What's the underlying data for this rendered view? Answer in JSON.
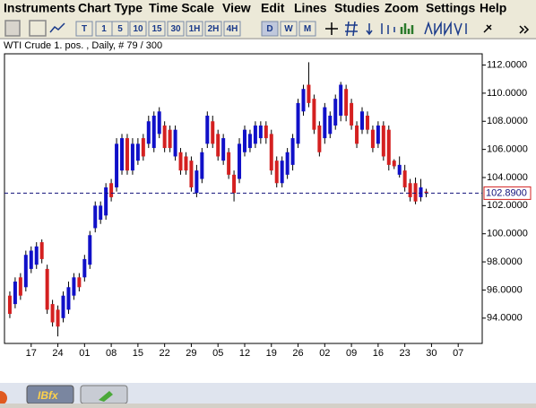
{
  "menu": [
    "Instruments",
    "Chart Type",
    "Time Scale",
    "View",
    "Edit",
    "Lines",
    "Studies",
    "Zoom",
    "Settings",
    "Help"
  ],
  "toolbar": {
    "buttons": [
      "T",
      "1",
      "5",
      "10",
      "15",
      "30",
      "1H",
      "2H",
      "4H",
      "D",
      "W",
      "M"
    ],
    "active": "D"
  },
  "taskbar": {
    "app": "IBfx"
  },
  "chart_data": {
    "type": "candlestick",
    "title": "WTI Crude 1. pos. , Daily, # 79 / 300",
    "open": [
      95.6,
      95.0,
      96.9,
      96.2,
      97.5,
      97.8,
      99.4,
      97.5,
      95.0,
      94.6,
      94.0,
      94.6,
      95.6,
      96.9,
      96.9,
      97.8,
      100.4,
      101.0,
      101.3,
      103.6,
      103.3,
      104.5,
      106.8,
      104.5,
      105.2,
      106.8,
      106.4,
      106.1,
      107.1,
      107.7,
      107.4,
      105.5,
      105.8,
      105.5,
      105.2,
      102.9,
      103.9,
      106.4,
      108.0,
      107.1,
      105.2,
      105.8,
      104.2,
      103.9,
      105.8,
      106.1,
      106.4,
      106.8,
      107.7,
      107.1,
      105.2,
      103.6,
      104.2,
      104.9,
      106.4,
      108.7,
      110.6,
      109.6,
      107.7,
      106.8,
      107.1,
      107.7,
      108.4,
      110.3,
      109.3,
      107.7,
      107.4,
      108.4,
      107.4,
      106.4,
      107.7,
      107.4,
      105.2,
      104.2,
      104.5,
      103.6,
      103.6,
      102.6,
      103.0
    ],
    "high": [
      95.9,
      96.9,
      97.2,
      98.8,
      99.1,
      99.4,
      99.6,
      97.8,
      95.3,
      94.9,
      95.9,
      96.6,
      97.2,
      97.2,
      98.5,
      100.2,
      102.3,
      102.3,
      103.6,
      103.9,
      106.8,
      107.1,
      107.1,
      106.8,
      106.8,
      107.1,
      108.4,
      108.7,
      109.0,
      108.0,
      107.7,
      107.7,
      106.1,
      105.8,
      105.5,
      104.9,
      106.1,
      108.7,
      108.4,
      107.4,
      107.1,
      106.1,
      104.5,
      106.8,
      107.7,
      107.4,
      108.0,
      108.0,
      108.0,
      107.4,
      105.5,
      105.5,
      106.1,
      107.1,
      109.6,
      110.6,
      112.2,
      109.9,
      108.0,
      109.3,
      108.7,
      109.9,
      110.8,
      110.6,
      109.6,
      108.0,
      109.0,
      108.7,
      107.7,
      108.0,
      108.0,
      107.7,
      105.3,
      105.5,
      104.9,
      103.9,
      104.0,
      103.9,
      103.2
    ],
    "low": [
      94.0,
      94.7,
      95.3,
      95.9,
      97.2,
      97.5,
      97.9,
      94.3,
      93.4,
      92.7,
      93.7,
      94.3,
      95.3,
      95.9,
      96.6,
      97.5,
      100.1,
      100.7,
      101.0,
      102.3,
      103.0,
      104.2,
      104.2,
      104.2,
      104.9,
      105.2,
      106.1,
      105.8,
      106.8,
      105.8,
      105.8,
      105.2,
      104.2,
      104.2,
      103.0,
      102.6,
      103.6,
      106.1,
      106.1,
      105.2,
      104.9,
      103.9,
      102.3,
      103.6,
      105.5,
      105.8,
      106.1,
      106.4,
      106.4,
      104.2,
      103.3,
      103.3,
      103.9,
      104.5,
      106.1,
      108.4,
      109.0,
      107.1,
      105.5,
      106.4,
      106.8,
      107.4,
      108.0,
      108.0,
      107.4,
      106.1,
      107.1,
      107.1,
      105.8,
      106.1,
      105.2,
      104.5,
      104.6,
      104.0,
      103.0,
      102.3,
      102.1,
      102.3,
      102.6
    ],
    "close": [
      94.3,
      96.6,
      95.6,
      98.5,
      98.8,
      99.1,
      98.2,
      94.6,
      93.7,
      93.4,
      95.6,
      96.2,
      96.9,
      96.2,
      98.2,
      99.9,
      102.0,
      102.0,
      103.3,
      102.6,
      106.4,
      106.8,
      104.5,
      106.4,
      106.4,
      105.5,
      108.0,
      108.4,
      108.7,
      106.1,
      106.1,
      107.4,
      104.5,
      104.5,
      103.3,
      104.5,
      105.8,
      108.4,
      106.4,
      105.5,
      106.8,
      104.2,
      102.9,
      106.4,
      107.4,
      107.1,
      107.7,
      107.7,
      106.8,
      104.5,
      103.6,
      105.2,
      105.8,
      106.8,
      109.3,
      110.3,
      109.3,
      107.4,
      105.8,
      109.0,
      108.4,
      109.6,
      110.6,
      108.4,
      107.7,
      106.4,
      108.7,
      107.4,
      106.1,
      107.7,
      105.5,
      104.9,
      104.8,
      104.9,
      103.3,
      102.6,
      102.3,
      103.3,
      102.9
    ],
    "up_color": "#1010c8",
    "down_color": "#d42020",
    "xlim": [
      -1,
      88.5
    ],
    "xticks": [
      {
        "value": 4,
        "label": "17"
      },
      {
        "value": 9,
        "label": "24"
      },
      {
        "value": 14,
        "label": "01"
      },
      {
        "value": 19,
        "label": "08"
      },
      {
        "value": 24,
        "label": "15"
      },
      {
        "value": 29,
        "label": "22"
      },
      {
        "value": 34,
        "label": "29"
      },
      {
        "value": 39,
        "label": "05"
      },
      {
        "value": 44,
        "label": "12"
      },
      {
        "value": 49,
        "label": "19"
      },
      {
        "value": 54,
        "label": "26"
      },
      {
        "value": 59,
        "label": "02"
      },
      {
        "value": 64,
        "label": "09"
      },
      {
        "value": 69,
        "label": "16"
      },
      {
        "value": 74,
        "label": "23"
      },
      {
        "value": 79,
        "label": "30"
      },
      {
        "value": 84,
        "label": "07"
      }
    ],
    "ylim": [
      92.2,
      112.8
    ],
    "yticks": [
      {
        "value": 94,
        "label": "94.0000"
      },
      {
        "value": 96,
        "label": "96.0000"
      },
      {
        "value": 98,
        "label": "98.0000"
      },
      {
        "value": 100,
        "label": "100.0000"
      },
      {
        "value": 102,
        "label": "102.0000"
      },
      {
        "value": 104,
        "label": "104.0000"
      },
      {
        "value": 106,
        "label": "106.0000"
      },
      {
        "value": 108,
        "label": "108.0000"
      },
      {
        "value": 110,
        "label": "110.0000"
      },
      {
        "value": 112,
        "label": "112.0000"
      }
    ],
    "current_price": {
      "value": 102.89,
      "label": "102.8900"
    },
    "grid": false
  }
}
